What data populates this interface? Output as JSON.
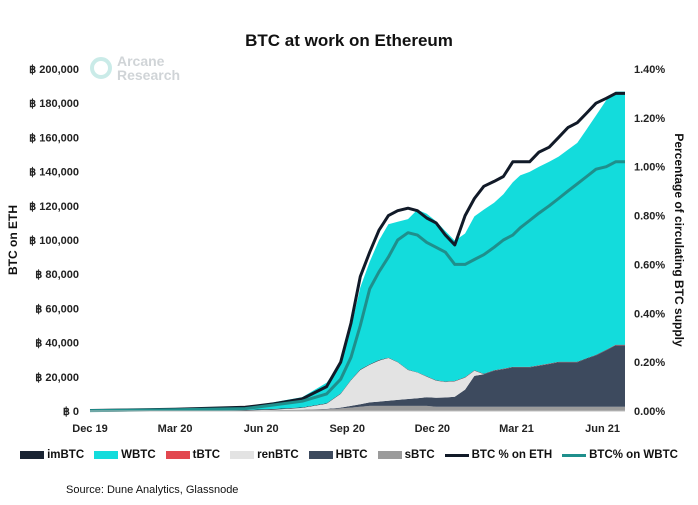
{
  "chart_data": {
    "type": "area",
    "title": "BTC at work on Ethereum",
    "watermark": [
      "Arcane",
      "Research"
    ],
    "ylabel": "BTC on ETH",
    "y2label": "Percentage of circulating BTC supply",
    "source": "Source: Dune Analytics, Glassnode",
    "ylim": [
      0,
      200000
    ],
    "y2lim": [
      0,
      1.4
    ],
    "yticks": [
      {
        "v": 0,
        "label": "฿ 0"
      },
      {
        "v": 20000,
        "label": "฿ 20,000"
      },
      {
        "v": 40000,
        "label": "฿ 40,000"
      },
      {
        "v": 60000,
        "label": "฿ 60,000"
      },
      {
        "v": 80000,
        "label": "฿ 80,000"
      },
      {
        "v": 100000,
        "label": "฿ 100,000"
      },
      {
        "v": 120000,
        "label": "฿ 120,000"
      },
      {
        "v": 140000,
        "label": "฿ 140,000"
      },
      {
        "v": 160000,
        "label": "฿ 160,000"
      },
      {
        "v": 180000,
        "label": "฿ 180,000"
      },
      {
        "v": 200000,
        "label": "฿ 200,000"
      }
    ],
    "y2ticks": [
      {
        "v": 0,
        "label": "0.00%"
      },
      {
        "v": 0.2,
        "label": "0.20%"
      },
      {
        "v": 0.4,
        "label": "0.40%"
      },
      {
        "v": 0.6,
        "label": "0.60%"
      },
      {
        "v": 0.8,
        "label": "0.80%"
      },
      {
        "v": 1.0,
        "label": "1.00%"
      },
      {
        "v": 1.2,
        "label": "1.20%"
      },
      {
        "v": 1.4,
        "label": "1.40%"
      }
    ],
    "xlim": [
      "2019-12-01",
      "2021-06-25"
    ],
    "xticks": [
      {
        "date": "2019-12-01",
        "label": "Dec 19"
      },
      {
        "date": "2020-03-01",
        "label": "Mar 20"
      },
      {
        "date": "2020-06-01",
        "label": "Jun 20"
      },
      {
        "date": "2020-09-01",
        "label": "Sep 20"
      },
      {
        "date": "2020-12-01",
        "label": "Dec 20"
      },
      {
        "date": "2021-03-01",
        "label": "Mar 21"
      },
      {
        "date": "2021-06-01",
        "label": "Jun 21"
      }
    ],
    "x": [
      "2019-12-01",
      "2020-03-01",
      "2020-05-15",
      "2020-06-15",
      "2020-07-15",
      "2020-08-10",
      "2020-08-25",
      "2020-09-05",
      "2020-09-15",
      "2020-09-25",
      "2020-10-05",
      "2020-10-15",
      "2020-10-25",
      "2020-11-05",
      "2020-11-15",
      "2020-11-25",
      "2020-12-05",
      "2020-12-15",
      "2020-12-25",
      "2021-01-05",
      "2021-01-15",
      "2021-01-25",
      "2021-02-05",
      "2021-02-15",
      "2021-02-25",
      "2021-03-05",
      "2021-03-15",
      "2021-03-25",
      "2021-04-05",
      "2021-04-15",
      "2021-04-25",
      "2021-05-05",
      "2021-05-15",
      "2021-05-25",
      "2021-06-05",
      "2021-06-15",
      "2021-06-25"
    ],
    "series": [
      {
        "name": "imBTC",
        "kind": "area",
        "color": "#1a2433",
        "values": [
          0,
          200,
          300,
          400,
          300,
          300,
          300,
          300,
          300,
          300,
          300,
          200,
          200,
          200,
          200,
          200,
          200,
          200,
          200,
          200,
          200,
          200,
          200,
          200,
          200,
          200,
          200,
          200,
          200,
          200,
          200,
          200,
          200,
          200,
          200,
          200,
          200
        ]
      },
      {
        "name": "WBTC",
        "kind": "area",
        "color": "#13dcdc",
        "values": [
          300,
          800,
          1500,
          4000,
          6000,
          12000,
          18000,
          30000,
          48000,
          60000,
          70000,
          78000,
          82000,
          88000,
          95000,
          95000,
          93000,
          88000,
          82000,
          84000,
          90000,
          96000,
          98000,
          102000,
          108000,
          112000,
          114000,
          116000,
          118000,
          120000,
          124000,
          128000,
          134000,
          140000,
          146000,
          148000,
          148000
        ]
      },
      {
        "name": "tBTC",
        "kind": "area",
        "color": "#e2474f",
        "values": [
          0,
          0,
          0,
          0,
          0,
          0,
          0,
          0,
          0,
          0,
          0,
          0,
          0,
          0,
          0,
          100,
          100,
          100,
          100,
          100,
          100,
          100,
          100,
          100,
          100,
          100,
          100,
          100,
          100,
          100,
          100,
          100,
          100,
          100,
          100,
          100,
          100
        ]
      },
      {
        "name": "renBTC",
        "kind": "area",
        "color": "#e3e3e3",
        "values": [
          0,
          0,
          0,
          300,
          1000,
          3000,
          8000,
          15000,
          20000,
          22000,
          24000,
          25000,
          22000,
          17000,
          15000,
          12000,
          10000,
          9000,
          9000,
          7000,
          3000,
          0,
          0,
          0,
          0,
          0,
          0,
          0,
          0,
          0,
          0,
          0,
          0,
          0,
          0,
          0,
          0
        ]
      },
      {
        "name": "HBTC",
        "kind": "area",
        "color": "#3d4a5e",
        "values": [
          0,
          0,
          0,
          0,
          0,
          200,
          500,
          1000,
          1500,
          2000,
          2500,
          3000,
          3500,
          4000,
          4500,
          5000,
          5200,
          5400,
          5800,
          10000,
          18000,
          19000,
          21000,
          22000,
          23000,
          23000,
          23000,
          24000,
          25000,
          26000,
          26000,
          26000,
          28000,
          30000,
          33000,
          36000,
          36000
        ]
      },
      {
        "name": "sBTC",
        "kind": "area",
        "color": "#9b9b9b",
        "values": [
          0,
          0,
          300,
          500,
          800,
          1000,
          1500,
          2000,
          2500,
          3000,
          3000,
          3000,
          3000,
          3000,
          3000,
          3000,
          2500,
          2500,
          2500,
          2500,
          2500,
          2500,
          2500,
          2500,
          2500,
          2500,
          2500,
          2500,
          2500,
          2500,
          2500,
          2500,
          2500,
          2500,
          2500,
          2500,
          2500
        ]
      },
      {
        "name": "BTC % on ETH",
        "kind": "line",
        "axis": "y2",
        "color": "#111a28",
        "values": [
          0.002,
          0.007,
          0.015,
          0.03,
          0.05,
          0.1,
          0.2,
          0.36,
          0.55,
          0.65,
          0.74,
          0.8,
          0.82,
          0.83,
          0.82,
          0.79,
          0.77,
          0.72,
          0.68,
          0.8,
          0.87,
          0.92,
          0.94,
          0.96,
          1.02,
          1.02,
          1.02,
          1.06,
          1.08,
          1.12,
          1.16,
          1.18,
          1.22,
          1.26,
          1.28,
          1.3,
          1.3
        ]
      },
      {
        "name": "BTC% on WBTC",
        "kind": "line",
        "axis": "y2",
        "color": "#1f8f8c",
        "values": [
          0.0015,
          0.005,
          0.01,
          0.025,
          0.04,
          0.07,
          0.13,
          0.22,
          0.35,
          0.5,
          0.57,
          0.63,
          0.7,
          0.73,
          0.72,
          0.69,
          0.67,
          0.65,
          0.6,
          0.6,
          0.62,
          0.64,
          0.67,
          0.7,
          0.72,
          0.75,
          0.78,
          0.81,
          0.84,
          0.87,
          0.9,
          0.93,
          0.96,
          0.99,
          1.0,
          1.02,
          1.02
        ]
      }
    ]
  }
}
